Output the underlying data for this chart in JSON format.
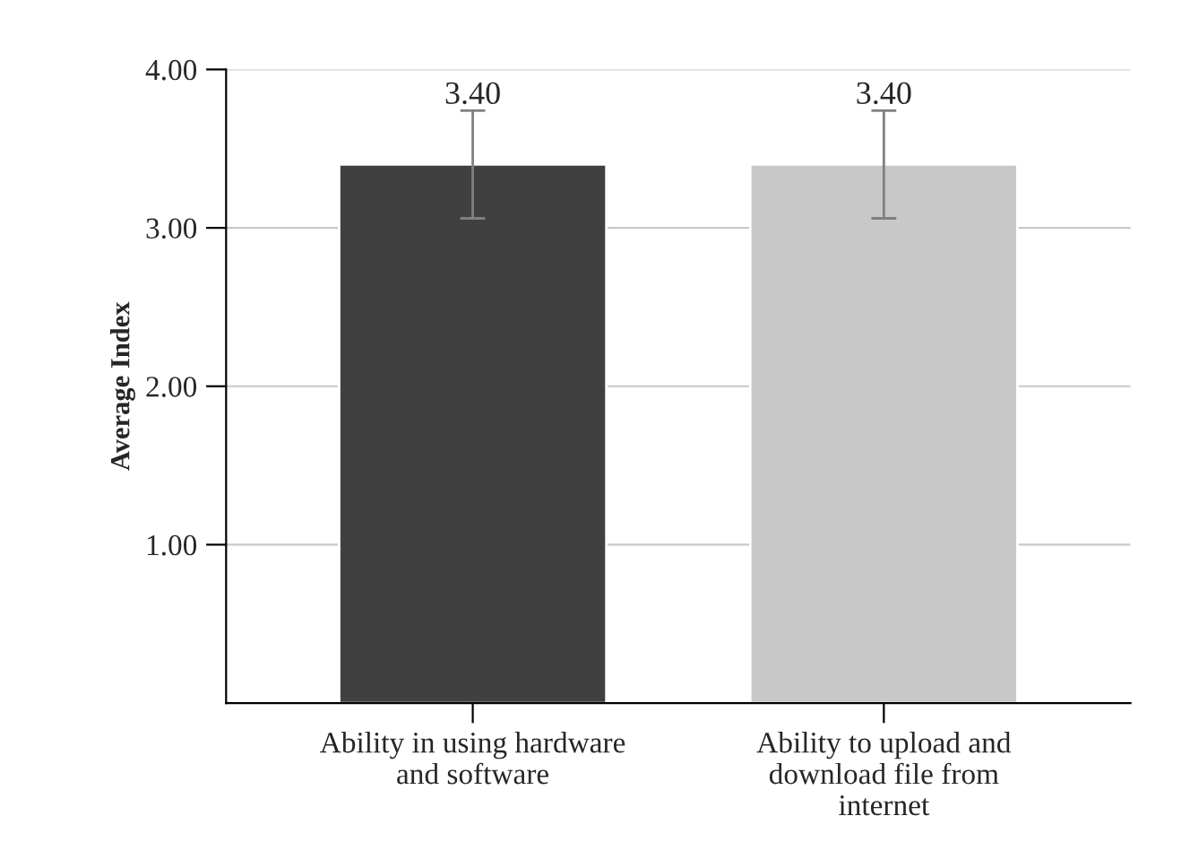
{
  "chart_data": {
    "type": "bar",
    "ylabel": "Average Index",
    "categories": [
      "Ability in using hardware\nand software",
      "Ability to upload and\ndownload file from\ninternet"
    ],
    "values": [
      3.4,
      3.4
    ],
    "colors": [
      "#404040",
      "#c8c8c8"
    ],
    "errors": [
      0.34,
      0.34
    ],
    "value_labels": [
      "3.40",
      "3.40"
    ],
    "ylim": [
      0,
      4
    ],
    "yticks": [
      {
        "value": 1,
        "label": "1.00"
      },
      {
        "value": 2,
        "label": "2.00"
      },
      {
        "value": 3,
        "label": "3.00"
      },
      {
        "value": 4,
        "label": "4.00"
      }
    ],
    "grid": "y"
  }
}
